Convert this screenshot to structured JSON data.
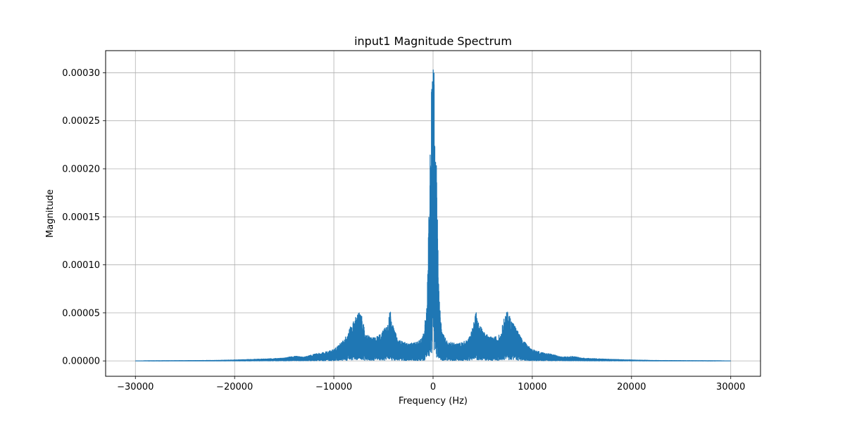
{
  "chart_data": {
    "type": "line",
    "title": "input1 Magnitude Spectrum",
    "xlabel": "Frequency (Hz)",
    "ylabel": "Magnitude",
    "xlim": [
      -33000,
      33000
    ],
    "ylim": [
      -1.6e-05,
      0.000323
    ],
    "xticks": [
      -30000,
      -20000,
      -10000,
      0,
      10000,
      20000,
      30000
    ],
    "xtick_labels": [
      "−30000",
      "−20000",
      "−10000",
      "0",
      "10000",
      "20000",
      "30000"
    ],
    "yticks": [
      0.0,
      5e-05,
      0.0001,
      0.00015,
      0.0002,
      0.00025,
      0.0003
    ],
    "ytick_labels": [
      "0.00000",
      "0.00005",
      "0.00010",
      "0.00015",
      "0.00020",
      "0.00025",
      "0.00030"
    ],
    "grid": true,
    "series": [
      {
        "color": "#1f77b4",
        "envelope": {
          "x": [
            -30000,
            -22000,
            -20000,
            -17000,
            -15000,
            -14000,
            -13000,
            -12000,
            -11000,
            -10000,
            -9000,
            -8200,
            -7500,
            -7200,
            -6800,
            -6000,
            -5200,
            -4600,
            -4300,
            -4000,
            -3500,
            -2500,
            -1500,
            -900,
            -600,
            -400,
            -300,
            -200,
            -150,
            -50,
            0,
            50,
            150,
            200,
            300,
            400,
            600,
            900,
            1500,
            2500,
            3500,
            4000,
            4300,
            4600,
            5200,
            6000,
            6800,
            7200,
            7500,
            8200,
            9000,
            10000,
            11000,
            12000,
            13000,
            14000,
            15000,
            17000,
            20000,
            22000,
            30000
          ],
          "y": [
            0.0,
            5e-07,
            1e-06,
            2e-06,
            3e-06,
            5e-06,
            4e-06,
            7e-06,
            9e-06,
            1.2e-05,
            2.2e-05,
            3.8e-05,
            5.2e-05,
            4.7e-05,
            2.8e-05,
            2.4e-05,
            2.9e-05,
            4e-05,
            5.4e-05,
            3.5e-05,
            2.2e-05,
            1.8e-05,
            2e-05,
            3e-05,
            6.8e-05,
            0.00017,
            0.00022,
            0.000225,
            0.0003,
            0.000308,
            0.000305,
            0.000308,
            0.0003,
            0.000225,
            0.00022,
            0.00017,
            6.8e-05,
            3e-05,
            2e-05,
            1.8e-05,
            2.2e-05,
            3.5e-05,
            5.4e-05,
            4e-05,
            2.9e-05,
            2.4e-05,
            2.8e-05,
            4.7e-05,
            5.2e-05,
            3.8e-05,
            2.2e-05,
            1.2e-05,
            9e-06,
            7e-06,
            4e-06,
            5e-06,
            3e-06,
            2e-06,
            1e-06,
            5e-07,
            0.0
          ]
        },
        "x_range": [
          -30000,
          30000
        ]
      }
    ]
  }
}
